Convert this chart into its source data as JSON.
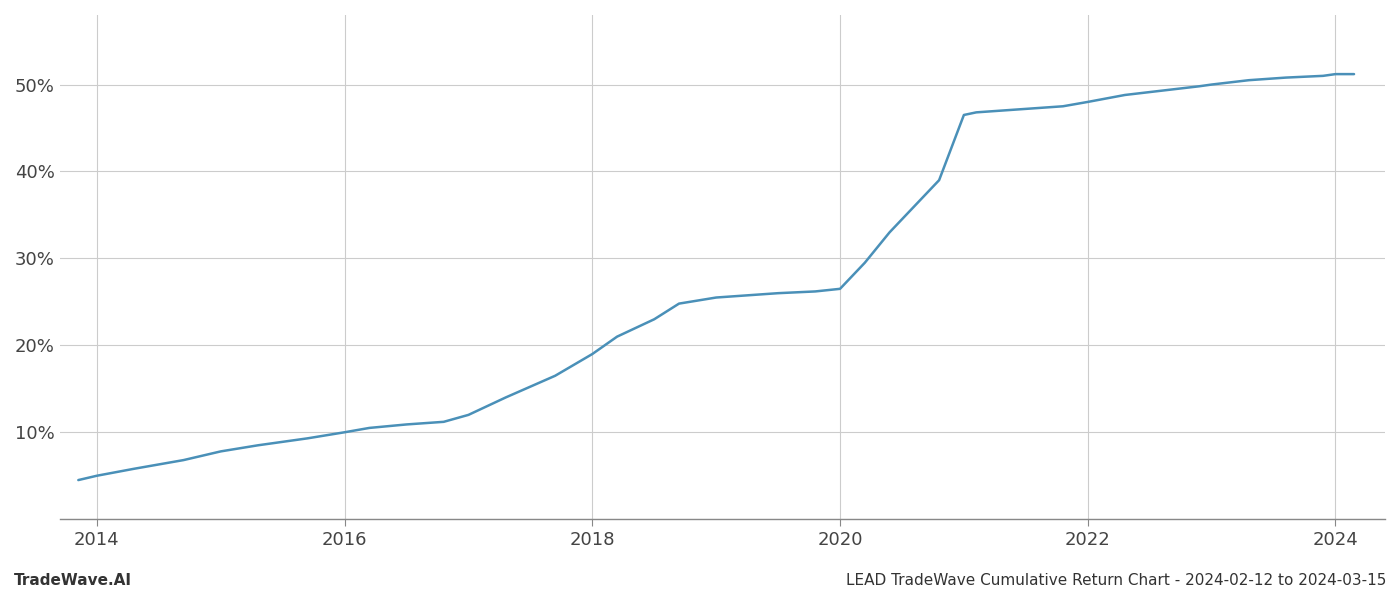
{
  "title": "LEAD TradeWave Cumulative Return Chart - 2024-02-12 to 2024-03-15",
  "watermark": "TradeWave.AI",
  "line_color": "#4a90b8",
  "background_color": "#ffffff",
  "grid_color": "#cccccc",
  "x_years": [
    2013.85,
    2014.0,
    2014.3,
    2014.7,
    2015.0,
    2015.3,
    2015.7,
    2016.0,
    2016.2,
    2016.5,
    2016.8,
    2017.0,
    2017.3,
    2017.7,
    2018.0,
    2018.2,
    2018.5,
    2018.7,
    2019.0,
    2019.3,
    2019.5,
    2019.8,
    2020.0,
    2020.2,
    2020.4,
    2020.6,
    2020.8,
    2021.0,
    2021.1,
    2021.3,
    2021.5,
    2021.8,
    2022.0,
    2022.3,
    2022.6,
    2022.9,
    2023.0,
    2023.3,
    2023.6,
    2023.9,
    2024.0,
    2024.15
  ],
  "y_values": [
    0.045,
    0.05,
    0.058,
    0.068,
    0.078,
    0.085,
    0.093,
    0.1,
    0.105,
    0.109,
    0.112,
    0.12,
    0.14,
    0.165,
    0.19,
    0.21,
    0.23,
    0.248,
    0.255,
    0.258,
    0.26,
    0.262,
    0.265,
    0.295,
    0.33,
    0.36,
    0.39,
    0.465,
    0.468,
    0.47,
    0.472,
    0.475,
    0.48,
    0.488,
    0.493,
    0.498,
    0.5,
    0.505,
    0.508,
    0.51,
    0.512,
    0.512
  ],
  "xlim": [
    2013.7,
    2024.4
  ],
  "ylim": [
    0.0,
    0.58
  ],
  "yticks": [
    0.0,
    0.1,
    0.2,
    0.3,
    0.4,
    0.5
  ],
  "ytick_labels": [
    "",
    "10%",
    "20%",
    "30%",
    "40%",
    "50%"
  ],
  "xticks": [
    2014,
    2016,
    2018,
    2020,
    2022,
    2024
  ],
  "xtick_labels": [
    "2014",
    "2016",
    "2018",
    "2020",
    "2022",
    "2024"
  ],
  "title_fontsize": 11,
  "watermark_fontsize": 11,
  "tick_fontsize": 13,
  "line_width": 1.8
}
